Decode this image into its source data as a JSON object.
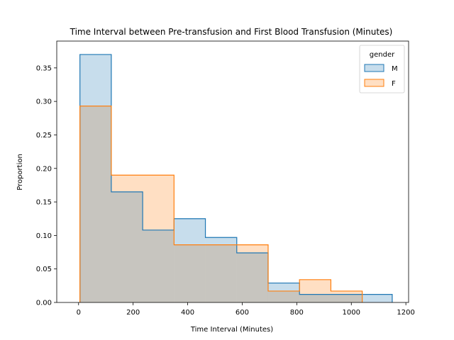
{
  "chart_data": {
    "type": "histogram",
    "title": "Time Interval between Pre-transfusion and First Blood Transfusion (Minutes)",
    "xlabel": "Time Interval (Minutes)",
    "ylabel": "Proportion",
    "xlim": [
      -80,
      1210
    ],
    "ylim": [
      0,
      0.39
    ],
    "xticks": [
      0,
      200,
      400,
      600,
      800,
      1000,
      1200
    ],
    "yticks": [
      0.0,
      0.05,
      0.1,
      0.15,
      0.2,
      0.25,
      0.3,
      0.35
    ],
    "bin_edges": [
      5,
      120,
      235,
      350,
      465,
      580,
      695,
      810,
      925,
      1040,
      1150
    ],
    "legend": {
      "title": "gender",
      "placement": "top-right"
    },
    "series": [
      {
        "name": "M",
        "color": "#1f77b4",
        "values": [
          0.37,
          0.165,
          0.108,
          0.125,
          0.097,
          0.074,
          0.029,
          0.012,
          0.012,
          0.012
        ]
      },
      {
        "name": "F",
        "color": "#ff7f0e",
        "values": [
          0.293,
          0.19,
          0.19,
          0.086,
          0.086,
          0.086,
          0.017,
          0.034,
          0.017,
          0.0
        ]
      }
    ]
  }
}
